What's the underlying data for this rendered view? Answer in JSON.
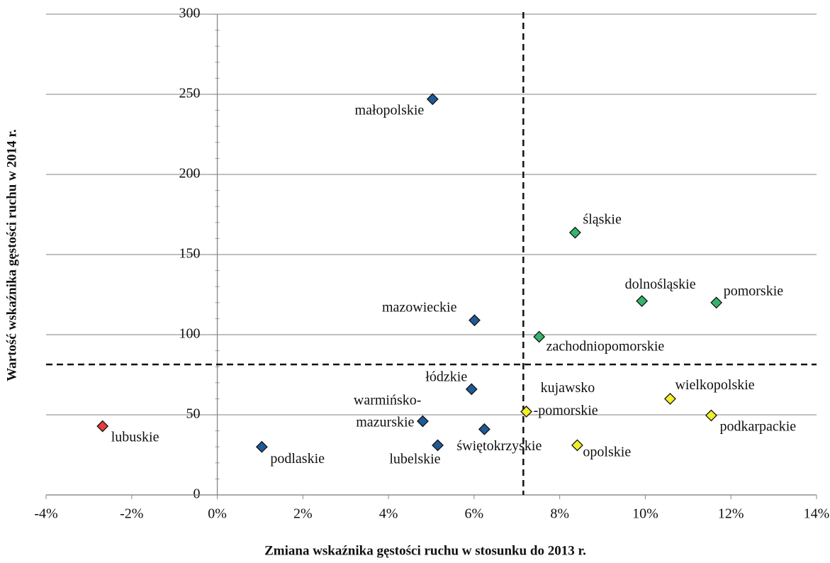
{
  "chart_data": {
    "type": "scatter",
    "x_label": "Zmiana wskaźnika gęstości ruchu w stosunku do 2013 r.",
    "y_label": "Wartość  wskaźnika gęstości ruchu w 2014 r.",
    "xlim": [
      -4,
      14
    ],
    "ylim": [
      0,
      300
    ],
    "xticks": [
      {
        "value": -4,
        "label": "-4%"
      },
      {
        "value": -2,
        "label": "-2%"
      },
      {
        "value": 0,
        "label": "0%"
      },
      {
        "value": 2,
        "label": "2%"
      },
      {
        "value": 4,
        "label": "4%"
      },
      {
        "value": 6,
        "label": "6%"
      },
      {
        "value": 8,
        "label": "8%"
      },
      {
        "value": 10,
        "label": "10%"
      },
      {
        "value": 12,
        "label": "12%"
      },
      {
        "value": 14,
        "label": "14%"
      }
    ],
    "yticks": [
      0,
      50,
      100,
      150,
      200,
      250,
      300
    ],
    "grid": true,
    "reference_lines": {
      "x": 7.15,
      "y": 81.4
    },
    "points": [
      {
        "label": [
          "lubuskie"
        ],
        "x": -2.68,
        "y": 42.9,
        "color": "#e83a3a"
      },
      {
        "label": [
          "podlaskie"
        ],
        "x": 1.04,
        "y": 30,
        "color": "#1f5a96"
      },
      {
        "label": [
          "małopolskie"
        ],
        "x": 5.03,
        "y": 247,
        "color": "#1f5a96"
      },
      {
        "label": [
          "mazowieckie"
        ],
        "x": 6.01,
        "y": 109,
        "color": "#1f5a96"
      },
      {
        "label": [
          "łódzkie"
        ],
        "x": 5.94,
        "y": 66,
        "color": "#1f5a96"
      },
      {
        "label": [
          "warmińsko-",
          "mazurskie"
        ],
        "x": 4.8,
        "y": 46,
        "color": "#1f5a96"
      },
      {
        "label": [
          "lubelskie"
        ],
        "x": 5.15,
        "y": 31,
        "color": "#1f5a96"
      },
      {
        "label": [
          "świętokrzyskie"
        ],
        "x": 6.24,
        "y": 41,
        "color": "#1f5a96"
      },
      {
        "label": [
          "kujawsko",
          "-pomorskie"
        ],
        "x": 7.22,
        "y": 52,
        "color": "#f2ee2a"
      },
      {
        "label": [
          "opolskie"
        ],
        "x": 8.41,
        "y": 31,
        "color": "#f2ee2a"
      },
      {
        "label": [
          "zachodniopomorskie"
        ],
        "x": 7.52,
        "y": 98.7,
        "color": "#35b56a"
      },
      {
        "label": [
          "śląskie"
        ],
        "x": 8.36,
        "y": 163.7,
        "color": "#35b56a"
      },
      {
        "label": [
          "dolnośląskie"
        ],
        "x": 9.92,
        "y": 121,
        "color": "#35b56a"
      },
      {
        "label": [
          "pomorskie"
        ],
        "x": 11.66,
        "y": 120,
        "color": "#35b56a"
      },
      {
        "label": [
          "wielkopolskie"
        ],
        "x": 10.58,
        "y": 60,
        "color": "#f2ee2a"
      },
      {
        "label": [
          "podkarpackie"
        ],
        "x": 11.54,
        "y": 49.6,
        "color": "#f2ee2a"
      }
    ]
  }
}
